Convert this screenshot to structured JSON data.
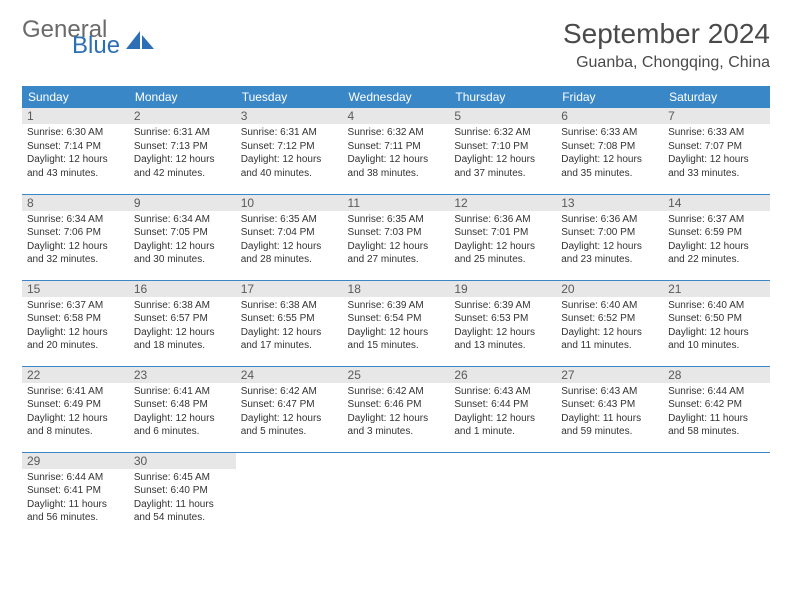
{
  "logo": {
    "word1": "General",
    "word2": "Blue"
  },
  "title": "September 2024",
  "location": "Guanba, Chongqing, China",
  "colors": {
    "header_bg": "#3a87c8",
    "header_text": "#ffffff",
    "daynum_bg": "#e7e7e7",
    "border": "#3a87c8",
    "logo_gray": "#6a6a6a",
    "logo_blue": "#2d6fb5"
  },
  "weekdays": [
    "Sunday",
    "Monday",
    "Tuesday",
    "Wednesday",
    "Thursday",
    "Friday",
    "Saturday"
  ],
  "weeks": [
    [
      {
        "n": "1",
        "sr": "6:30 AM",
        "ss": "7:14 PM",
        "dl": "12 hours and 43 minutes."
      },
      {
        "n": "2",
        "sr": "6:31 AM",
        "ss": "7:13 PM",
        "dl": "12 hours and 42 minutes."
      },
      {
        "n": "3",
        "sr": "6:31 AM",
        "ss": "7:12 PM",
        "dl": "12 hours and 40 minutes."
      },
      {
        "n": "4",
        "sr": "6:32 AM",
        "ss": "7:11 PM",
        "dl": "12 hours and 38 minutes."
      },
      {
        "n": "5",
        "sr": "6:32 AM",
        "ss": "7:10 PM",
        "dl": "12 hours and 37 minutes."
      },
      {
        "n": "6",
        "sr": "6:33 AM",
        "ss": "7:08 PM",
        "dl": "12 hours and 35 minutes."
      },
      {
        "n": "7",
        "sr": "6:33 AM",
        "ss": "7:07 PM",
        "dl": "12 hours and 33 minutes."
      }
    ],
    [
      {
        "n": "8",
        "sr": "6:34 AM",
        "ss": "7:06 PM",
        "dl": "12 hours and 32 minutes."
      },
      {
        "n": "9",
        "sr": "6:34 AM",
        "ss": "7:05 PM",
        "dl": "12 hours and 30 minutes."
      },
      {
        "n": "10",
        "sr": "6:35 AM",
        "ss": "7:04 PM",
        "dl": "12 hours and 28 minutes."
      },
      {
        "n": "11",
        "sr": "6:35 AM",
        "ss": "7:03 PM",
        "dl": "12 hours and 27 minutes."
      },
      {
        "n": "12",
        "sr": "6:36 AM",
        "ss": "7:01 PM",
        "dl": "12 hours and 25 minutes."
      },
      {
        "n": "13",
        "sr": "6:36 AM",
        "ss": "7:00 PM",
        "dl": "12 hours and 23 minutes."
      },
      {
        "n": "14",
        "sr": "6:37 AM",
        "ss": "6:59 PM",
        "dl": "12 hours and 22 minutes."
      }
    ],
    [
      {
        "n": "15",
        "sr": "6:37 AM",
        "ss": "6:58 PM",
        "dl": "12 hours and 20 minutes."
      },
      {
        "n": "16",
        "sr": "6:38 AM",
        "ss": "6:57 PM",
        "dl": "12 hours and 18 minutes."
      },
      {
        "n": "17",
        "sr": "6:38 AM",
        "ss": "6:55 PM",
        "dl": "12 hours and 17 minutes."
      },
      {
        "n": "18",
        "sr": "6:39 AM",
        "ss": "6:54 PM",
        "dl": "12 hours and 15 minutes."
      },
      {
        "n": "19",
        "sr": "6:39 AM",
        "ss": "6:53 PM",
        "dl": "12 hours and 13 minutes."
      },
      {
        "n": "20",
        "sr": "6:40 AM",
        "ss": "6:52 PM",
        "dl": "12 hours and 11 minutes."
      },
      {
        "n": "21",
        "sr": "6:40 AM",
        "ss": "6:50 PM",
        "dl": "12 hours and 10 minutes."
      }
    ],
    [
      {
        "n": "22",
        "sr": "6:41 AM",
        "ss": "6:49 PM",
        "dl": "12 hours and 8 minutes."
      },
      {
        "n": "23",
        "sr": "6:41 AM",
        "ss": "6:48 PM",
        "dl": "12 hours and 6 minutes."
      },
      {
        "n": "24",
        "sr": "6:42 AM",
        "ss": "6:47 PM",
        "dl": "12 hours and 5 minutes."
      },
      {
        "n": "25",
        "sr": "6:42 AM",
        "ss": "6:46 PM",
        "dl": "12 hours and 3 minutes."
      },
      {
        "n": "26",
        "sr": "6:43 AM",
        "ss": "6:44 PM",
        "dl": "12 hours and 1 minute."
      },
      {
        "n": "27",
        "sr": "6:43 AM",
        "ss": "6:43 PM",
        "dl": "11 hours and 59 minutes."
      },
      {
        "n": "28",
        "sr": "6:44 AM",
        "ss": "6:42 PM",
        "dl": "11 hours and 58 minutes."
      }
    ],
    [
      {
        "n": "29",
        "sr": "6:44 AM",
        "ss": "6:41 PM",
        "dl": "11 hours and 56 minutes."
      },
      {
        "n": "30",
        "sr": "6:45 AM",
        "ss": "6:40 PM",
        "dl": "11 hours and 54 minutes."
      },
      null,
      null,
      null,
      null,
      null
    ]
  ],
  "labels": {
    "sunrise": "Sunrise:",
    "sunset": "Sunset:",
    "daylight": "Daylight:"
  }
}
